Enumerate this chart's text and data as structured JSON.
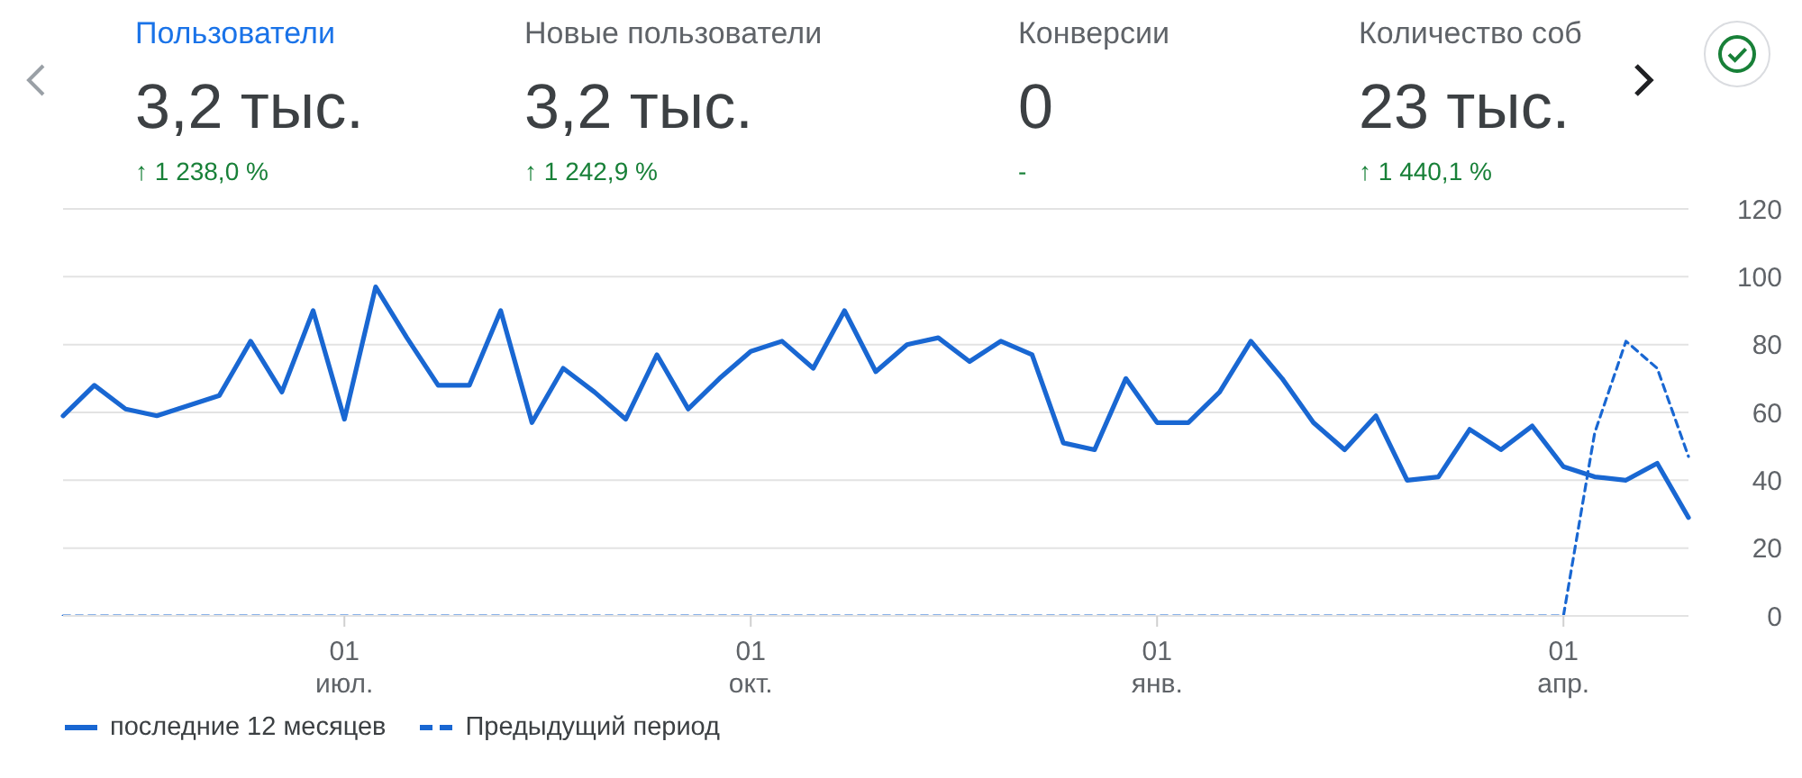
{
  "chart_data": [
    {
      "type": "other",
      "title": "Пользователи",
      "color": "#1a73e8",
      "annotations": [
        "3,2 тыс.",
        "↑ 1 238,0 %"
      ]
    },
    {
      "type": "other",
      "title": "Новые пользователи",
      "color": "#5f6368",
      "annotations": [
        "3,2 тыс.",
        "↑ 1 242,9 %"
      ]
    },
    {
      "type": "other",
      "title": "Конверсии",
      "color": "#5f6368",
      "annotations": [
        "0",
        "-"
      ]
    },
    {
      "type": "other",
      "title": "Количество соб",
      "color": "#5f6368",
      "annotations": [
        "23 тыс.",
        "↑ 1 440,1 %"
      ]
    },
    {
      "type": "line",
      "categories": [
        null,
        null,
        null,
        null,
        null,
        null,
        null,
        null,
        null,
        "01 июл.",
        null,
        null,
        null,
        null,
        null,
        null,
        null,
        null,
        null,
        null,
        null,
        null,
        "01 окт.",
        null,
        null,
        null,
        null,
        null,
        null,
        null,
        null,
        null,
        null,
        null,
        null,
        "01 янв.",
        null,
        null,
        null,
        null,
        null,
        null,
        null,
        null,
        null,
        null,
        null,
        null,
        "01 апр.",
        null,
        null,
        null,
        null
      ],
      "series": [
        {
          "name": "последние 12 месяцев",
          "color": "#1967d2",
          "values": [
            59,
            68,
            61,
            59,
            62,
            65,
            81,
            66,
            90,
            58,
            97,
            82,
            68,
            68,
            90,
            57,
            73,
            66,
            58,
            77,
            61,
            70,
            78,
            81,
            73,
            90,
            72,
            80,
            82,
            75,
            81,
            77,
            51,
            49,
            70,
            57,
            57,
            66,
            81,
            70,
            57,
            49,
            59,
            40,
            41,
            55,
            49,
            56,
            44,
            41,
            40,
            45,
            29
          ]
        },
        {
          "name": "Предыдущий период",
          "color": "#1967d2",
          "line_style": "dashed",
          "values": [
            0,
            0,
            0,
            0,
            0,
            0,
            0,
            0,
            0,
            0,
            0,
            0,
            0,
            0,
            0,
            0,
            0,
            0,
            0,
            0,
            0,
            0,
            0,
            0,
            0,
            0,
            0,
            0,
            0,
            0,
            0,
            0,
            0,
            0,
            0,
            0,
            0,
            0,
            0,
            0,
            0,
            0,
            0,
            0,
            0,
            0,
            0,
            0,
            0,
            54,
            81,
            73,
            47
          ]
        }
      ],
      "ylim": [
        0,
        120
      ],
      "yticks": [
        0,
        20,
        40,
        60,
        80,
        100,
        120
      ],
      "grid": "y",
      "legend": "bottom left",
      "line_style": "solid"
    }
  ]
}
